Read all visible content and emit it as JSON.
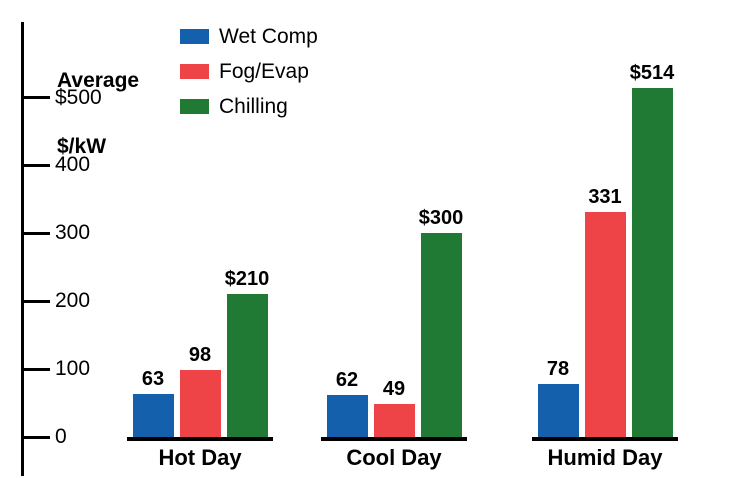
{
  "chart_data": {
    "type": "bar",
    "title": "",
    "ylabel": "Average $/kW",
    "ylabel_lines": [
      "Average",
      "$/kW"
    ],
    "categories": [
      "Hot Day",
      "Cool Day",
      "Humid Day"
    ],
    "series": [
      {
        "name": "Wet Comp",
        "color": "#1560AC",
        "values": [
          63,
          62,
          78
        ],
        "value_labels": [
          "63",
          "62",
          "78"
        ]
      },
      {
        "name": "Fog/Evap",
        "color": "#EE4448",
        "values": [
          98,
          49,
          331
        ],
        "value_labels": [
          "98",
          "49",
          "331"
        ]
      },
      {
        "name": "Chilling",
        "color": "#217A34",
        "values": [
          210,
          300,
          514
        ],
        "value_labels": [
          "$210",
          "$300",
          "$514"
        ]
      }
    ],
    "yticks": [
      {
        "value": 500,
        "label": "$500"
      },
      {
        "value": 400,
        "label": "400"
      },
      {
        "value": 300,
        "label": "300"
      },
      {
        "value": 200,
        "label": "200"
      },
      {
        "value": 100,
        "label": "100"
      },
      {
        "value": 0,
        "label": "0"
      }
    ],
    "ylim": [
      0,
      610
    ],
    "grid": false,
    "legend_position": "top-left",
    "axis_color": "#000000",
    "text_color": "#000000",
    "background_color": "#FFFFFF"
  }
}
